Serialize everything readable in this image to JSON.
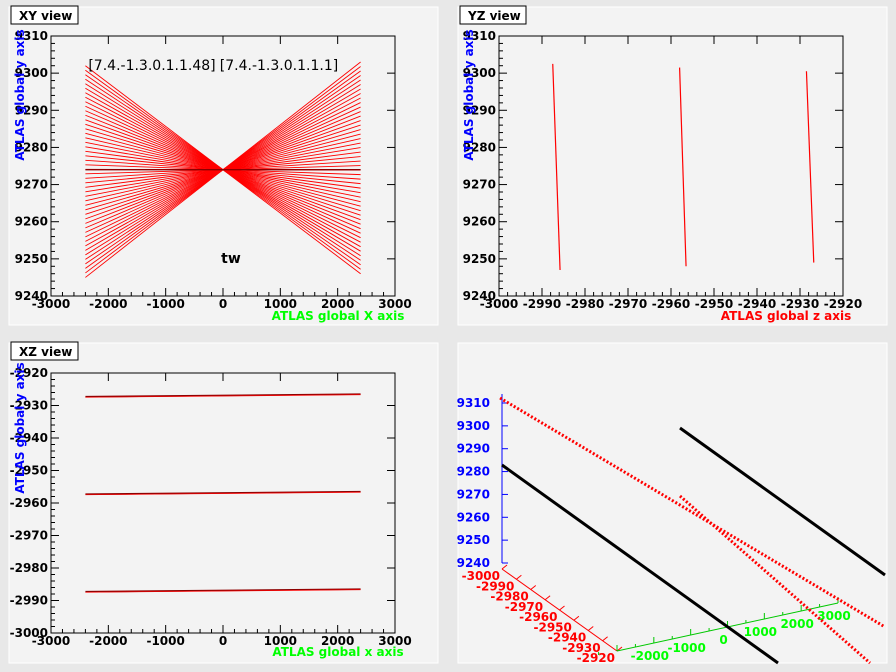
{
  "charts": {
    "xy": {
      "title": "XY view",
      "xlabel": "ATLAS global X axis",
      "ylabel": "ATLAS global y axis",
      "xlim": [
        -3000,
        3000
      ],
      "ylim": [
        9240,
        9310
      ],
      "xticks": [
        "-3000",
        "-2000",
        "-1000",
        "0",
        "1000",
        "2000",
        "3000"
      ],
      "yticks": [
        "9240",
        "9250",
        "9260",
        "9270",
        "9280",
        "9290",
        "9300",
        "9310"
      ],
      "annotations": [
        "[7.4.-1.3.0.1.1.48]",
        "[7.4.-1.3.0.1.1.1]",
        "tw"
      ]
    },
    "yz": {
      "title": "YZ view",
      "xlabel": "ATLAS global z axis",
      "ylabel": "ATLAS global y axis",
      "xlim": [
        -3000,
        -2920
      ],
      "ylim": [
        9240,
        9310
      ],
      "xticks": [
        "-3000",
        "-2990",
        "-2980",
        "-2970",
        "-2960",
        "-2950",
        "-2940",
        "-2930",
        "-2920"
      ],
      "yticks": [
        "9240",
        "9250",
        "9260",
        "9270",
        "9280",
        "9290",
        "9300",
        "9310"
      ]
    },
    "xz": {
      "title": "XZ view",
      "xlabel": "ATLAS global x axis",
      "ylabel": "ATLAS global y axis",
      "xlim": [
        -3000,
        3000
      ],
      "ylim": [
        -3000,
        -2920
      ],
      "xticks": [
        "-3000",
        "-2000",
        "-1000",
        "0",
        "1000",
        "2000",
        "3000"
      ],
      "yticks": [
        "-3000",
        "-2990",
        "-2980",
        "-2970",
        "-2960",
        "-2950",
        "-2940",
        "-2930",
        "-2920"
      ]
    },
    "view3d": {
      "yticks": [
        "9240",
        "9250",
        "9260",
        "9270",
        "9280",
        "9290",
        "9300",
        "9310"
      ],
      "zticks": [
        "-3000",
        "-2990",
        "-2980",
        "-2970",
        "-2960",
        "-2950",
        "-2940",
        "-2930",
        "-2920"
      ],
      "xticks": [
        "-2000",
        "-1000",
        "0",
        "1000",
        "2000",
        "3000"
      ]
    }
  },
  "colors": {
    "panel_bg": "#f3f3f3",
    "frame": "#e8e8e8",
    "line_red": "#ff0000",
    "line_dark": "#8b0000",
    "label_green": "#00ff00",
    "label_red": "#ff0000",
    "label_blue": "#0000ff"
  },
  "chart_data": [
    {
      "type": "line",
      "title": "XY view",
      "xlabel": "ATLAS global X axis",
      "ylabel": "ATLAS global y axis",
      "xlim": [
        -3000,
        3000
      ],
      "ylim": [
        9240,
        9310
      ],
      "grid": false,
      "fan": {
        "x_range": [
          -2400,
          2400
        ],
        "crossing": [
          0,
          9274
        ],
        "y_end_range": [
          9246,
          9303
        ],
        "n_lines": 48
      }
    },
    {
      "type": "line",
      "title": "YZ view",
      "xlabel": "ATLAS global z axis",
      "ylabel": "ATLAS global y axis",
      "xlim": [
        -3000,
        -2920
      ],
      "ylim": [
        9240,
        9310
      ],
      "grid": false,
      "series": [
        {
          "x": [
            -2987.5,
            -2985.8
          ],
          "y": [
            9302.5,
            9247
          ]
        },
        {
          "x": [
            -2958,
            -2956.5
          ],
          "y": [
            9301.5,
            9248
          ]
        },
        {
          "x": [
            -2928.5,
            -2926.8
          ],
          "y": [
            9300.5,
            9249
          ]
        }
      ]
    },
    {
      "type": "line",
      "title": "XZ view",
      "xlabel": "ATLAS global x axis",
      "ylabel": "ATLAS global y axis",
      "xlim": [
        -3000,
        3000
      ],
      "ylim": [
        -3000,
        -2920
      ],
      "grid": false,
      "series": [
        {
          "x": [
            -2400,
            2400
          ],
          "y": [
            -2927.3,
            -2926.5
          ]
        },
        {
          "x": [
            -2400,
            2400
          ],
          "y": [
            -2957.3,
            -2956.5
          ]
        },
        {
          "x": [
            -2400,
            2400
          ],
          "y": [
            -2987.3,
            -2986.5
          ]
        }
      ]
    }
  ]
}
